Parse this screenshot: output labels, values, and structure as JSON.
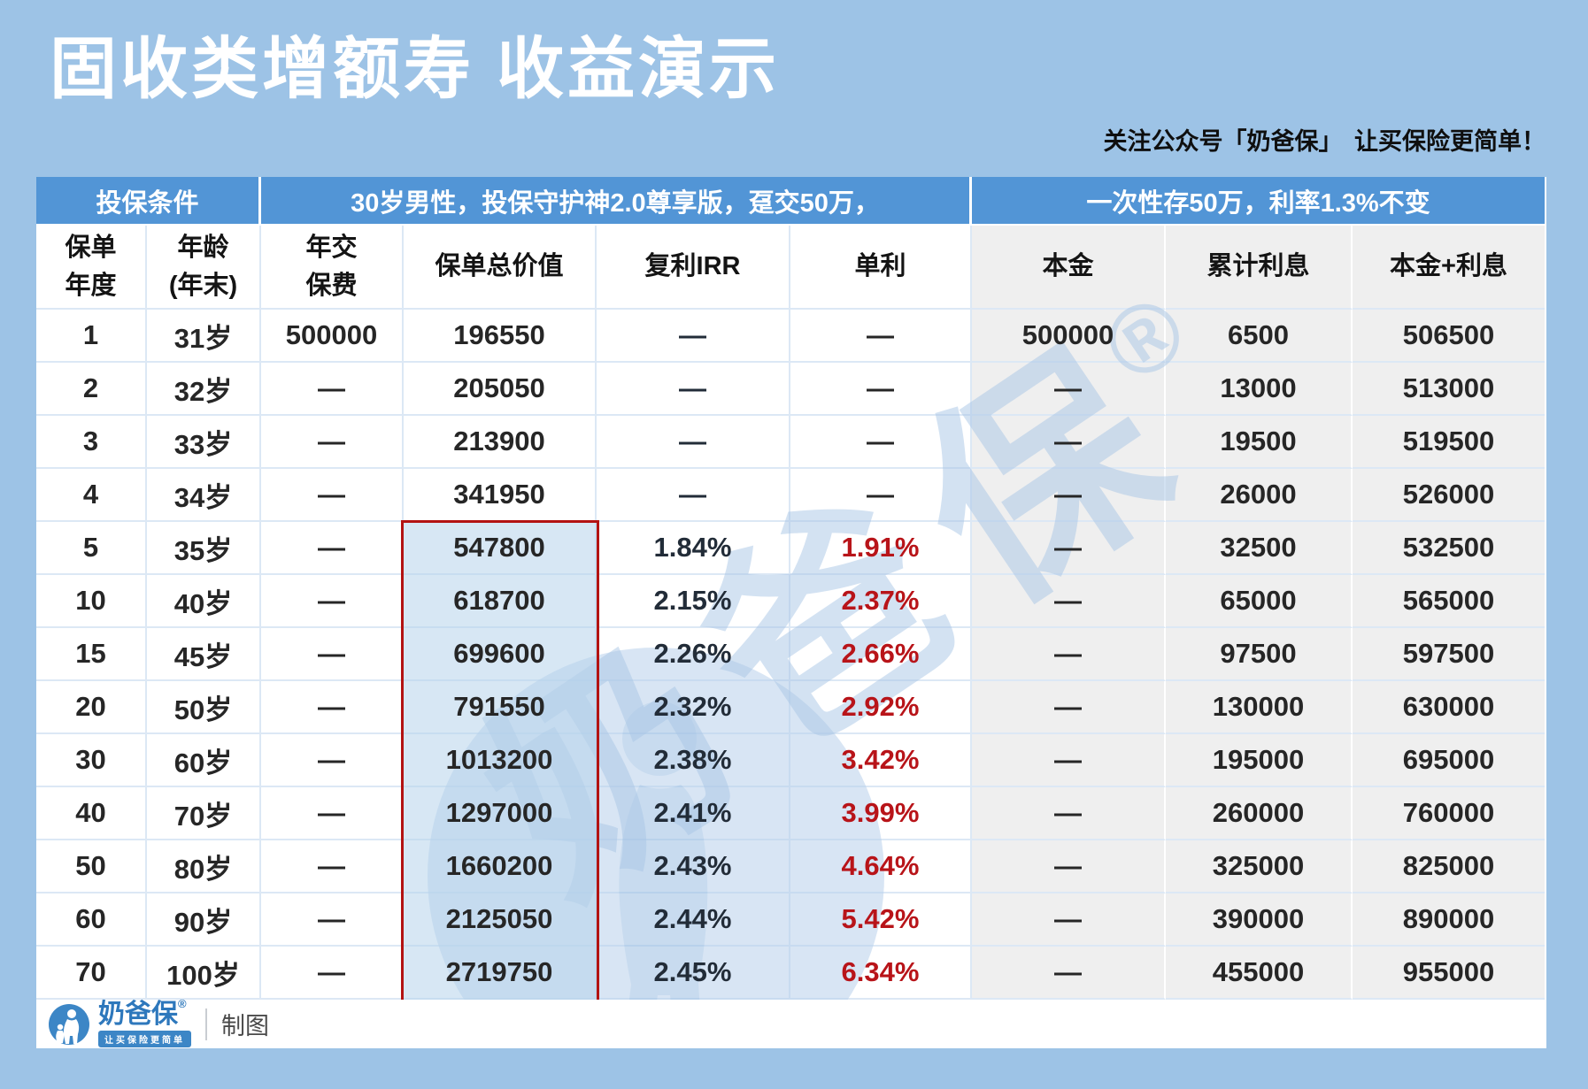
{
  "page": {
    "title": "固收类增额寿 收益演示",
    "note": "关注公众号「奶爸保」　让买保险更简单！"
  },
  "chart_data": {
    "type": "table",
    "title": "固收类增额寿 收益演示",
    "group_headers": [
      {
        "label": "投保条件",
        "span": 2
      },
      {
        "label": "30岁男性，投保守护神2.0尊享版，趸交50万，",
        "span": 4
      },
      {
        "label": "一次性存50万，利率1.3%不变",
        "span": 3
      }
    ],
    "columns": [
      {
        "line1": "保单",
        "line2": "年度"
      },
      {
        "line1": "年龄",
        "line2": "(年末)"
      },
      {
        "line1": "年交",
        "line2": "保费"
      },
      {
        "line1": "保单总价值"
      },
      {
        "line1": "复利IRR"
      },
      {
        "line1": "单利"
      },
      {
        "line1": "本金"
      },
      {
        "line1": "累计利息"
      },
      {
        "line1": "本金+利息"
      }
    ],
    "rows": [
      [
        "1",
        "31岁",
        "500000",
        "196550",
        "—",
        "—",
        "500000",
        "6500",
        "506500"
      ],
      [
        "2",
        "32岁",
        "—",
        "205050",
        "—",
        "—",
        "—",
        "13000",
        "513000"
      ],
      [
        "3",
        "33岁",
        "—",
        "213900",
        "—",
        "—",
        "—",
        "19500",
        "519500"
      ],
      [
        "4",
        "34岁",
        "—",
        "341950",
        "—",
        "—",
        "—",
        "26000",
        "526000"
      ],
      [
        "5",
        "35岁",
        "—",
        "547800",
        "1.84%",
        "1.91%",
        "—",
        "32500",
        "532500"
      ],
      [
        "10",
        "40岁",
        "—",
        "618700",
        "2.15%",
        "2.37%",
        "—",
        "65000",
        "565000"
      ],
      [
        "15",
        "45岁",
        "—",
        "699600",
        "2.26%",
        "2.66%",
        "—",
        "97500",
        "597500"
      ],
      [
        "20",
        "50岁",
        "—",
        "791550",
        "2.32%",
        "2.92%",
        "—",
        "130000",
        "630000"
      ],
      [
        "30",
        "60岁",
        "—",
        "1013200",
        "2.38%",
        "3.42%",
        "—",
        "195000",
        "695000"
      ],
      [
        "40",
        "70岁",
        "—",
        "1297000",
        "2.41%",
        "3.99%",
        "—",
        "260000",
        "760000"
      ],
      [
        "50",
        "80岁",
        "—",
        "1660200",
        "2.43%",
        "4.64%",
        "—",
        "325000",
        "825000"
      ],
      [
        "60",
        "90岁",
        "—",
        "2125050",
        "2.44%",
        "5.42%",
        "—",
        "390000",
        "890000"
      ],
      [
        "70",
        "100岁",
        "—",
        "2719750",
        "2.45%",
        "6.34%",
        "—",
        "455000",
        "955000"
      ]
    ],
    "highlight": {
      "column": "保单总价值",
      "rows": "5—70"
    }
  },
  "watermark": {
    "text": "奶爸保",
    "reg": "®"
  },
  "footer": {
    "brand": "奶爸保",
    "reg": "®",
    "slogan": "让买保险更简单",
    "caption": "制图"
  },
  "colors": {
    "page_bg": "#9dc3e6",
    "header_blue": "#5295d6",
    "section_gray": "#efefef",
    "grid_line": "#dce8f5",
    "text_dark": "#262626",
    "irr_dark": "#222c38",
    "simple_red": "#b81419",
    "highlight_border": "#b31312",
    "highlight_fill": "rgba(183,211,235,0.55)",
    "watermark_blue": "#a9c6e6",
    "brand_blue": "#2e78bc",
    "logo_blue": "#3c86c6"
  }
}
